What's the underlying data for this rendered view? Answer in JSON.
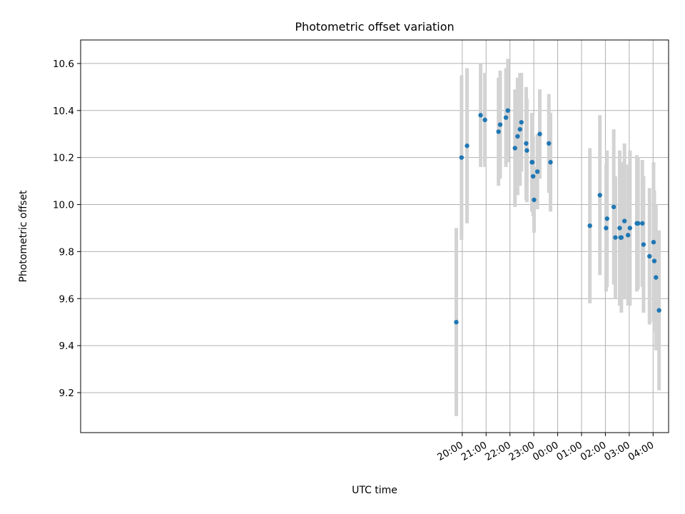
{
  "chart_data": {
    "type": "scatter",
    "title": "Photometric offset variation",
    "xlabel": "UTC time",
    "ylabel": "Photometric offset",
    "x_axis_type": "time",
    "x_units": "hours (UTC) relative to midnight; negative values are before 00:00",
    "xlim": [
      -20.0,
      4.65
    ],
    "ylim": [
      9.03,
      10.7
    ],
    "x_tick_values": [
      -4,
      -3,
      -2,
      -1,
      0,
      1,
      2,
      3,
      4
    ],
    "x_tick_labels": [
      "20:00",
      "21:00",
      "22:00",
      "23:00",
      "00:00",
      "01:00",
      "02:00",
      "03:00",
      "04:00"
    ],
    "y_ticks": [
      9.2,
      9.4,
      9.6,
      9.8,
      10.0,
      10.2,
      10.4,
      10.6
    ],
    "grid": true,
    "colors": {
      "marker": "#1f77b4",
      "errorbar": "#d3d3d3",
      "grid": "#b0b0b0"
    },
    "series": [
      {
        "x": [
          -4.25,
          -4.03,
          -3.8,
          -3.23,
          -3.05,
          -2.48,
          -2.41,
          -2.17,
          -2.09,
          -1.79,
          -1.68,
          -1.58,
          -1.52,
          -1.32,
          -1.29,
          -1.08,
          -1.06,
          -1.03,
          -0.99,
          -0.85,
          -0.75,
          -0.37,
          -0.3,
          1.35,
          1.77,
          2.03,
          2.07,
          2.35,
          2.42,
          2.6,
          2.64,
          2.67,
          2.8,
          2.95,
          3.03,
          3.32,
          3.37,
          3.55,
          3.6,
          3.85,
          4.02,
          4.05,
          4.12,
          4.25
        ],
        "y": [
          9.5,
          10.2,
          10.25,
          10.38,
          10.36,
          10.31,
          10.34,
          10.37,
          10.4,
          10.24,
          10.29,
          10.32,
          10.35,
          10.26,
          10.23,
          10.18,
          10.18,
          10.12,
          10.02,
          10.14,
          10.3,
          10.26,
          10.18,
          9.91,
          10.04,
          9.9,
          9.94,
          9.99,
          9.86,
          9.9,
          9.86,
          9.86,
          9.93,
          9.87,
          9.9,
          9.92,
          9.92,
          9.92,
          9.83,
          9.78,
          9.84,
          9.76,
          9.69,
          9.55
        ],
        "err": [
          0.4,
          0.35,
          0.33,
          0.22,
          0.2,
          0.23,
          0.23,
          0.21,
          0.22,
          0.25,
          0.25,
          0.24,
          0.21,
          0.24,
          0.22,
          0.21,
          0.2,
          0.17,
          0.14,
          0.16,
          0.19,
          0.21,
          0.21,
          0.33,
          0.34,
          0.27,
          0.29,
          0.33,
          0.26,
          0.33,
          0.28,
          0.32,
          0.33,
          0.3,
          0.33,
          0.29,
          0.28,
          0.27,
          0.29,
          0.29,
          0.34,
          0.3,
          0.31,
          0.34
        ]
      }
    ]
  }
}
